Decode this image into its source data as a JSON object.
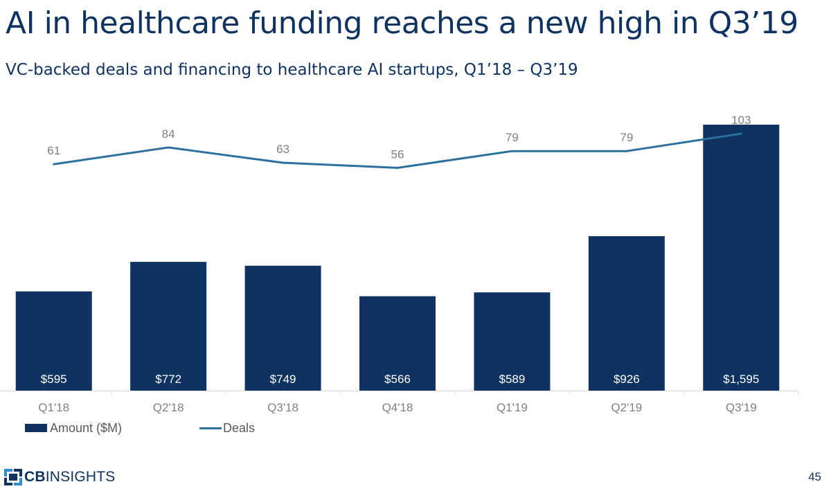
{
  "title": "AI in healthcare funding reaches a new high in Q3’19",
  "subtitle": "VC-backed deals and financing to healthcare AI startups, Q1’18 – Q3’19",
  "chart_data": {
    "type": "bar",
    "categories": [
      "Q1'18",
      "Q2'18",
      "Q3'18",
      "Q4'18",
      "Q1'19",
      "Q2'19",
      "Q3'19"
    ],
    "series": [
      {
        "name": "Amount ($M)",
        "type": "bar",
        "values": [
          595,
          772,
          749,
          566,
          589,
          926,
          1595
        ],
        "labels": [
          "$595",
          "$772",
          "$749",
          "$566",
          "$589",
          "$926",
          "$1,595"
        ],
        "color": "#0f3360",
        "ylim": [
          0,
          1700
        ]
      },
      {
        "name": "Deals",
        "type": "line",
        "values": [
          61,
          84,
          63,
          56,
          79,
          79,
          103
        ],
        "labels": [
          "61",
          "84",
          "63",
          "56",
          "79",
          "79",
          "103"
        ],
        "color": "#2c6f9e",
        "ylim": [
          0,
          120
        ]
      }
    ],
    "legend": "bottom-left",
    "grid": false
  },
  "legend": {
    "amount_label": "Amount ($M)",
    "deals_label": "Deals"
  },
  "footer": {
    "logo_bold": "CB",
    "logo_rest": "INSIGHTS",
    "page_number": "45"
  },
  "colors": {
    "navy": "#0f3360",
    "line": "#2c6f9e",
    "label_gray": "#7f7f7f",
    "axis_gray": "#d9d9d9",
    "logo_blue": "#2e8fd0"
  }
}
